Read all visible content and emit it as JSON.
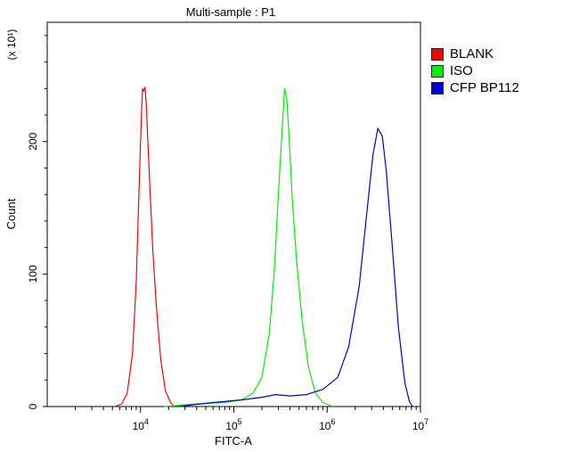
{
  "chart_data": {
    "type": "line",
    "title": "Multi-sample : P1",
    "xlabel": "FITC-A",
    "ylabel": "Count",
    "y_multiplier_label": "(x 10¹)",
    "x_scale": "log",
    "xlim": [
      1000,
      10000000
    ],
    "ylim": [
      0,
      290
    ],
    "x_ticks": [
      {
        "value": 10000,
        "base": "10",
        "exp": "4"
      },
      {
        "value": 100000,
        "base": "10",
        "exp": "5"
      },
      {
        "value": 1000000,
        "base": "10",
        "exp": "6"
      },
      {
        "value": 10000000,
        "base": "10",
        "exp": "7"
      }
    ],
    "y_ticks": [
      {
        "value": 0,
        "label": "0"
      },
      {
        "value": 100,
        "label": "100"
      },
      {
        "value": 200,
        "label": "200"
      }
    ],
    "legend_position": "right",
    "series": [
      {
        "name": "BLANK",
        "color": "#ff0000",
        "points": [
          [
            5300,
            0
          ],
          [
            6300,
            2
          ],
          [
            7200,
            10
          ],
          [
            8200,
            40
          ],
          [
            9000,
            95
          ],
          [
            9600,
            160
          ],
          [
            10000,
            200
          ],
          [
            10300,
            225
          ],
          [
            10500,
            240
          ],
          [
            10800,
            238
          ],
          [
            11200,
            241
          ],
          [
            11600,
            225
          ],
          [
            12000,
            200
          ],
          [
            12600,
            165
          ],
          [
            13500,
            120
          ],
          [
            14800,
            75
          ],
          [
            16500,
            35
          ],
          [
            18500,
            12
          ],
          [
            21000,
            3
          ],
          [
            23000,
            0
          ]
        ]
      },
      {
        "name": "ISO",
        "color": "#00ee00",
        "points": [
          [
            18000,
            0
          ],
          [
            40000,
            2
          ],
          [
            80000,
            3
          ],
          [
            120000,
            5
          ],
          [
            160000,
            10
          ],
          [
            200000,
            22
          ],
          [
            240000,
            55
          ],
          [
            270000,
            100
          ],
          [
            300000,
            160
          ],
          [
            330000,
            210
          ],
          [
            350000,
            240
          ],
          [
            370000,
            232
          ],
          [
            390000,
            205
          ],
          [
            420000,
            160
          ],
          [
            470000,
            110
          ],
          [
            540000,
            65
          ],
          [
            630000,
            30
          ],
          [
            750000,
            10
          ],
          [
            900000,
            3
          ],
          [
            1150000,
            0
          ]
        ]
      },
      {
        "name": "CFP BP112",
        "color": "#0000dd",
        "points": [
          [
            25000,
            0
          ],
          [
            60000,
            3
          ],
          [
            120000,
            5
          ],
          [
            200000,
            7
          ],
          [
            280000,
            9
          ],
          [
            400000,
            8
          ],
          [
            600000,
            9
          ],
          [
            900000,
            13
          ],
          [
            1300000,
            22
          ],
          [
            1700000,
            45
          ],
          [
            2200000,
            90
          ],
          [
            2700000,
            150
          ],
          [
            3100000,
            190
          ],
          [
            3500000,
            210
          ],
          [
            3900000,
            204
          ],
          [
            4300000,
            178
          ],
          [
            5000000,
            120
          ],
          [
            5800000,
            60
          ],
          [
            6800000,
            18
          ],
          [
            7600000,
            4
          ],
          [
            8200000,
            0
          ]
        ]
      }
    ]
  }
}
